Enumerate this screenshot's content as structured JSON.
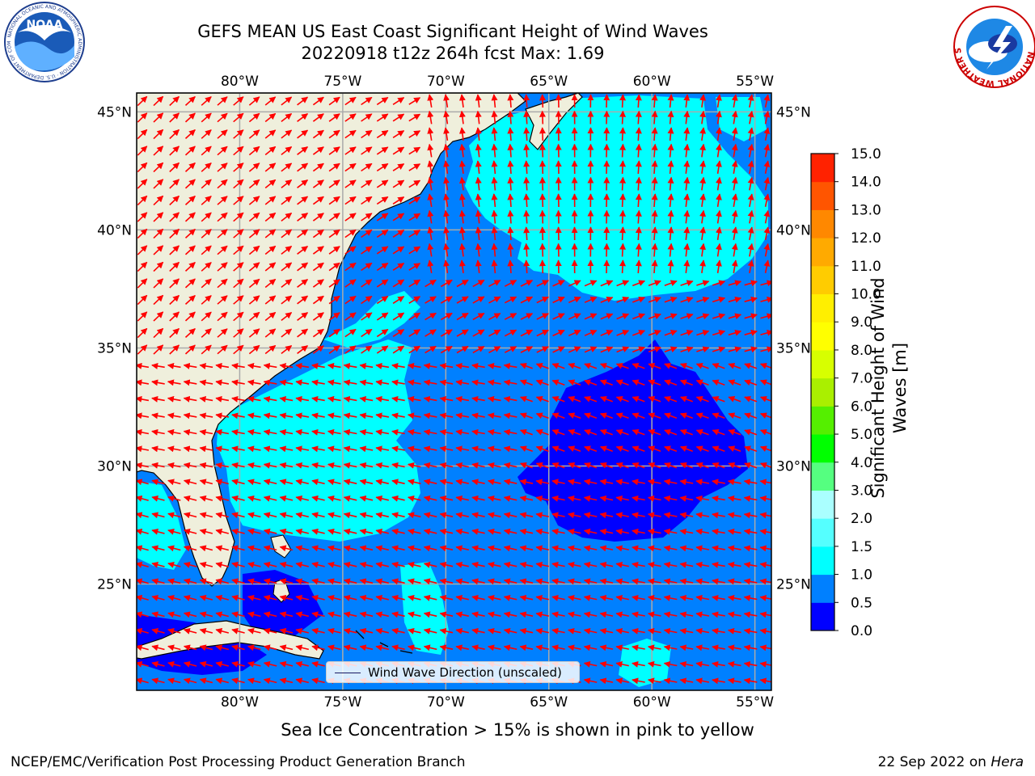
{
  "title": {
    "line1": "GEFS MEAN US East Coast Significant Height of Wind Waves",
    "line2": "20220918 t12z 264h fcst   Max: 1.69"
  },
  "map": {
    "lon_range": [
      -85,
      -54.2
    ],
    "lat_range": [
      20.5,
      45.8
    ],
    "lon_ticks": [
      "80°W",
      "75°W",
      "70°W",
      "65°W",
      "60°W",
      "55°W"
    ],
    "lat_ticks": [
      "45°N",
      "40°N",
      "35°N",
      "30°N",
      "25°N"
    ],
    "land_color": "#efefdc",
    "arrow_color": "#ff0000",
    "gridlines": true
  },
  "legend": {
    "label": "Wind Wave Direction (unscaled)",
    "placement": "lower-center"
  },
  "colorbar": {
    "label_line1": "Significant Height of Wind",
    "label_line2": "Waves [m]",
    "ticks": [
      "15.0",
      "14.0",
      "13.0",
      "12.0",
      "11.0",
      "10.0",
      "9.0",
      "8.0",
      "7.0",
      "6.0",
      "5.0",
      "4.0",
      "3.0",
      "2.0",
      "1.5",
      "1.0",
      "0.5",
      "0.0"
    ],
    "colors": [
      "#0000ff",
      "#0080ff",
      "#00ffff",
      "#55ffff",
      "#aaffff",
      "#55ff80",
      "#00ff00",
      "#55ef00",
      "#aaef00",
      "#d7ff00",
      "#ffff00",
      "#ffef00",
      "#ffcc00",
      "#ffaa00",
      "#ff8800",
      "#ff5500",
      "#ff2200",
      "#ff0000"
    ]
  },
  "chart_data": {
    "type": "heatmap",
    "variable": "Significant Height of Wind Waves [m]",
    "max": 1.69,
    "levels": [
      0.0,
      0.5,
      1.0,
      1.5,
      2.0,
      3.0,
      4.0,
      5.0,
      6.0,
      7.0,
      8.0,
      9.0,
      10.0,
      11.0,
      12.0,
      13.0,
      14.0,
      15.0
    ],
    "regions": [
      {
        "range": [
          1.0,
          1.5
        ],
        "area": "Gulf of Maine to 38°N, 70°W–58°W"
      },
      {
        "range": [
          1.0,
          1.5
        ],
        "area": "Off Southeast US coast, 27°N–34°N, 80°W–72°W"
      },
      {
        "range": [
          0.0,
          0.5
        ],
        "area": "Central Atlantic, 26°N–35°N, 66°W–57°W"
      },
      {
        "range": [
          0.5,
          1.0
        ],
        "area": "Remaining open ocean"
      }
    ]
  },
  "footer": {
    "note": "Sea Ice Concentration > 15% is shown in pink to yellow",
    "left": "NCEP/EMC/Verification Post Processing Product Generation Branch",
    "right_date": "22 Sep 2022 on ",
    "right_machine": "Hera"
  },
  "logos": {
    "noaa_text": "NOAA",
    "noaa_ring": "NATIONAL OCEANIC AND ATMOSPHERIC ADMINISTRATION · U.S. DEPARTMENT OF COMMERCE",
    "nws_ring": "NATIONAL WEATHER SERVICE"
  }
}
